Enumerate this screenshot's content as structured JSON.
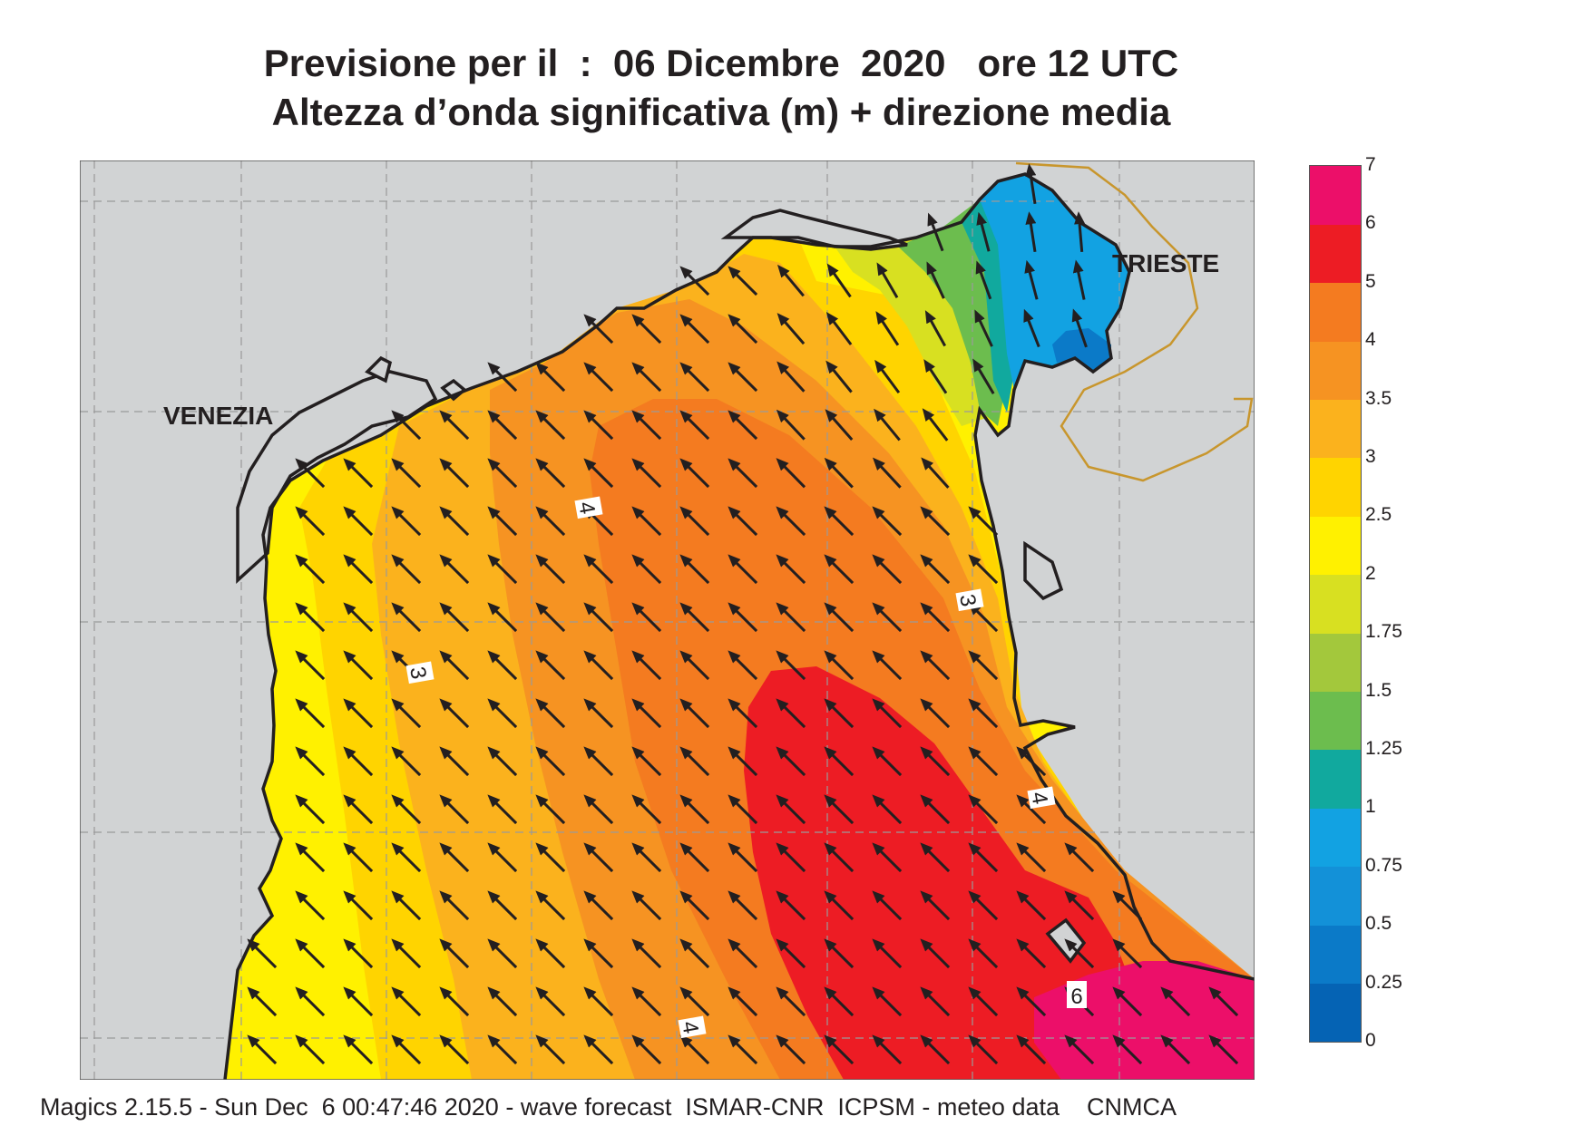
{
  "title": {
    "line1": "Previsione per il  :  06 Dicembre  2020   ore 12 UTC",
    "line2": "Altezza d’onda significativa (m) + direzione media"
  },
  "map": {
    "region": "Northern Adriatic Sea",
    "cities": [
      "VENEZIA",
      "TRIESTE"
    ],
    "contour_labels": [
      "4",
      "3",
      "3",
      "4",
      "4",
      "6"
    ],
    "arrow_direction": "towards north-west",
    "colors": {
      "land": "#d1d3d4",
      "coast": "#231f20",
      "graticule": "#9a9a9a",
      "border": "#c8962d"
    }
  },
  "legend": {
    "levels": [
      "0",
      "0.25",
      "0.5",
      "0.75",
      "1",
      "1.25",
      "1.5",
      "1.75",
      "2",
      "2.5",
      "3",
      "3.5",
      "4",
      "5",
      "6",
      "7"
    ],
    "colors": [
      "#0563b4",
      "#0b7ac8",
      "#1391d8",
      "#12a2e2",
      "#11a99e",
      "#6cbd4e",
      "#a3c83c",
      "#d8e021",
      "#fff100",
      "#ffd400",
      "#fbb21d",
      "#f69322",
      "#f47b20",
      "#ed1c24",
      "#ec0f69"
    ]
  },
  "credit": "Magics 2.15.5 - Sun Dec  6 00:47:46 2020 - wave forecast  ISMAR-CNR  ICPSM - meteo data    CNMCA"
}
